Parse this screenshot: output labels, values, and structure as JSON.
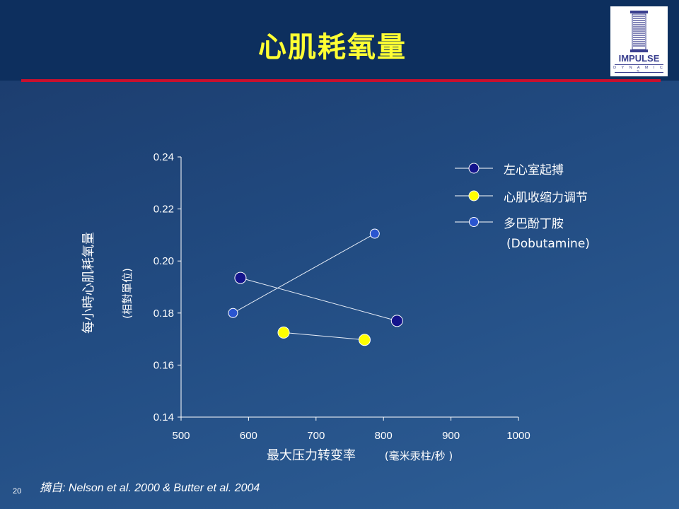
{
  "slide": {
    "title": "心肌耗氧量",
    "citation": "摘自: Nelson et al.  2000 &  Butter et al. 2004",
    "page_number": "20"
  },
  "logo": {
    "brand": "IMPULSE",
    "sub": "D Y N A M I C S",
    "colors": {
      "primary": "#3a3f8f"
    }
  },
  "colors": {
    "title": "#ffff33",
    "header": "#0d2f5e",
    "accent_line": "#c8102e"
  },
  "chart_data": {
    "type": "line",
    "title": "",
    "ylabel": "每小時心肌耗氧量",
    "ylabel_unit": "(相對單位)",
    "xlabel": "最大压力转变率",
    "xlabel_unit": "(毫米汞柱/秒 )",
    "xlim": [
      500,
      1000
    ],
    "ylim": [
      0.14,
      0.24
    ],
    "xticks": [
      "500",
      "600",
      "700",
      "800",
      "900",
      "1000"
    ],
    "yticks": [
      "0.14",
      "0.16",
      "0.18",
      "0.20",
      "0.22",
      "0.24"
    ],
    "legend_position": "right",
    "grid": false,
    "series": [
      {
        "name": "左心室起搏",
        "color": "#14148c",
        "marker_size": "large",
        "points": [
          [
            588,
            0.1935
          ],
          [
            820,
            0.177
          ]
        ]
      },
      {
        "name": "心肌收缩力调节",
        "color": "#ffff00",
        "marker_size": "large",
        "points": [
          [
            652,
            0.1725
          ],
          [
            772,
            0.1697
          ]
        ]
      },
      {
        "name": "多巴酚丁胺",
        "name_sub": "(Dobutamine)",
        "color": "#2a55d0",
        "marker_size": "small",
        "points": [
          [
            577,
            0.18
          ],
          [
            787,
            0.2105
          ]
        ]
      }
    ]
  }
}
